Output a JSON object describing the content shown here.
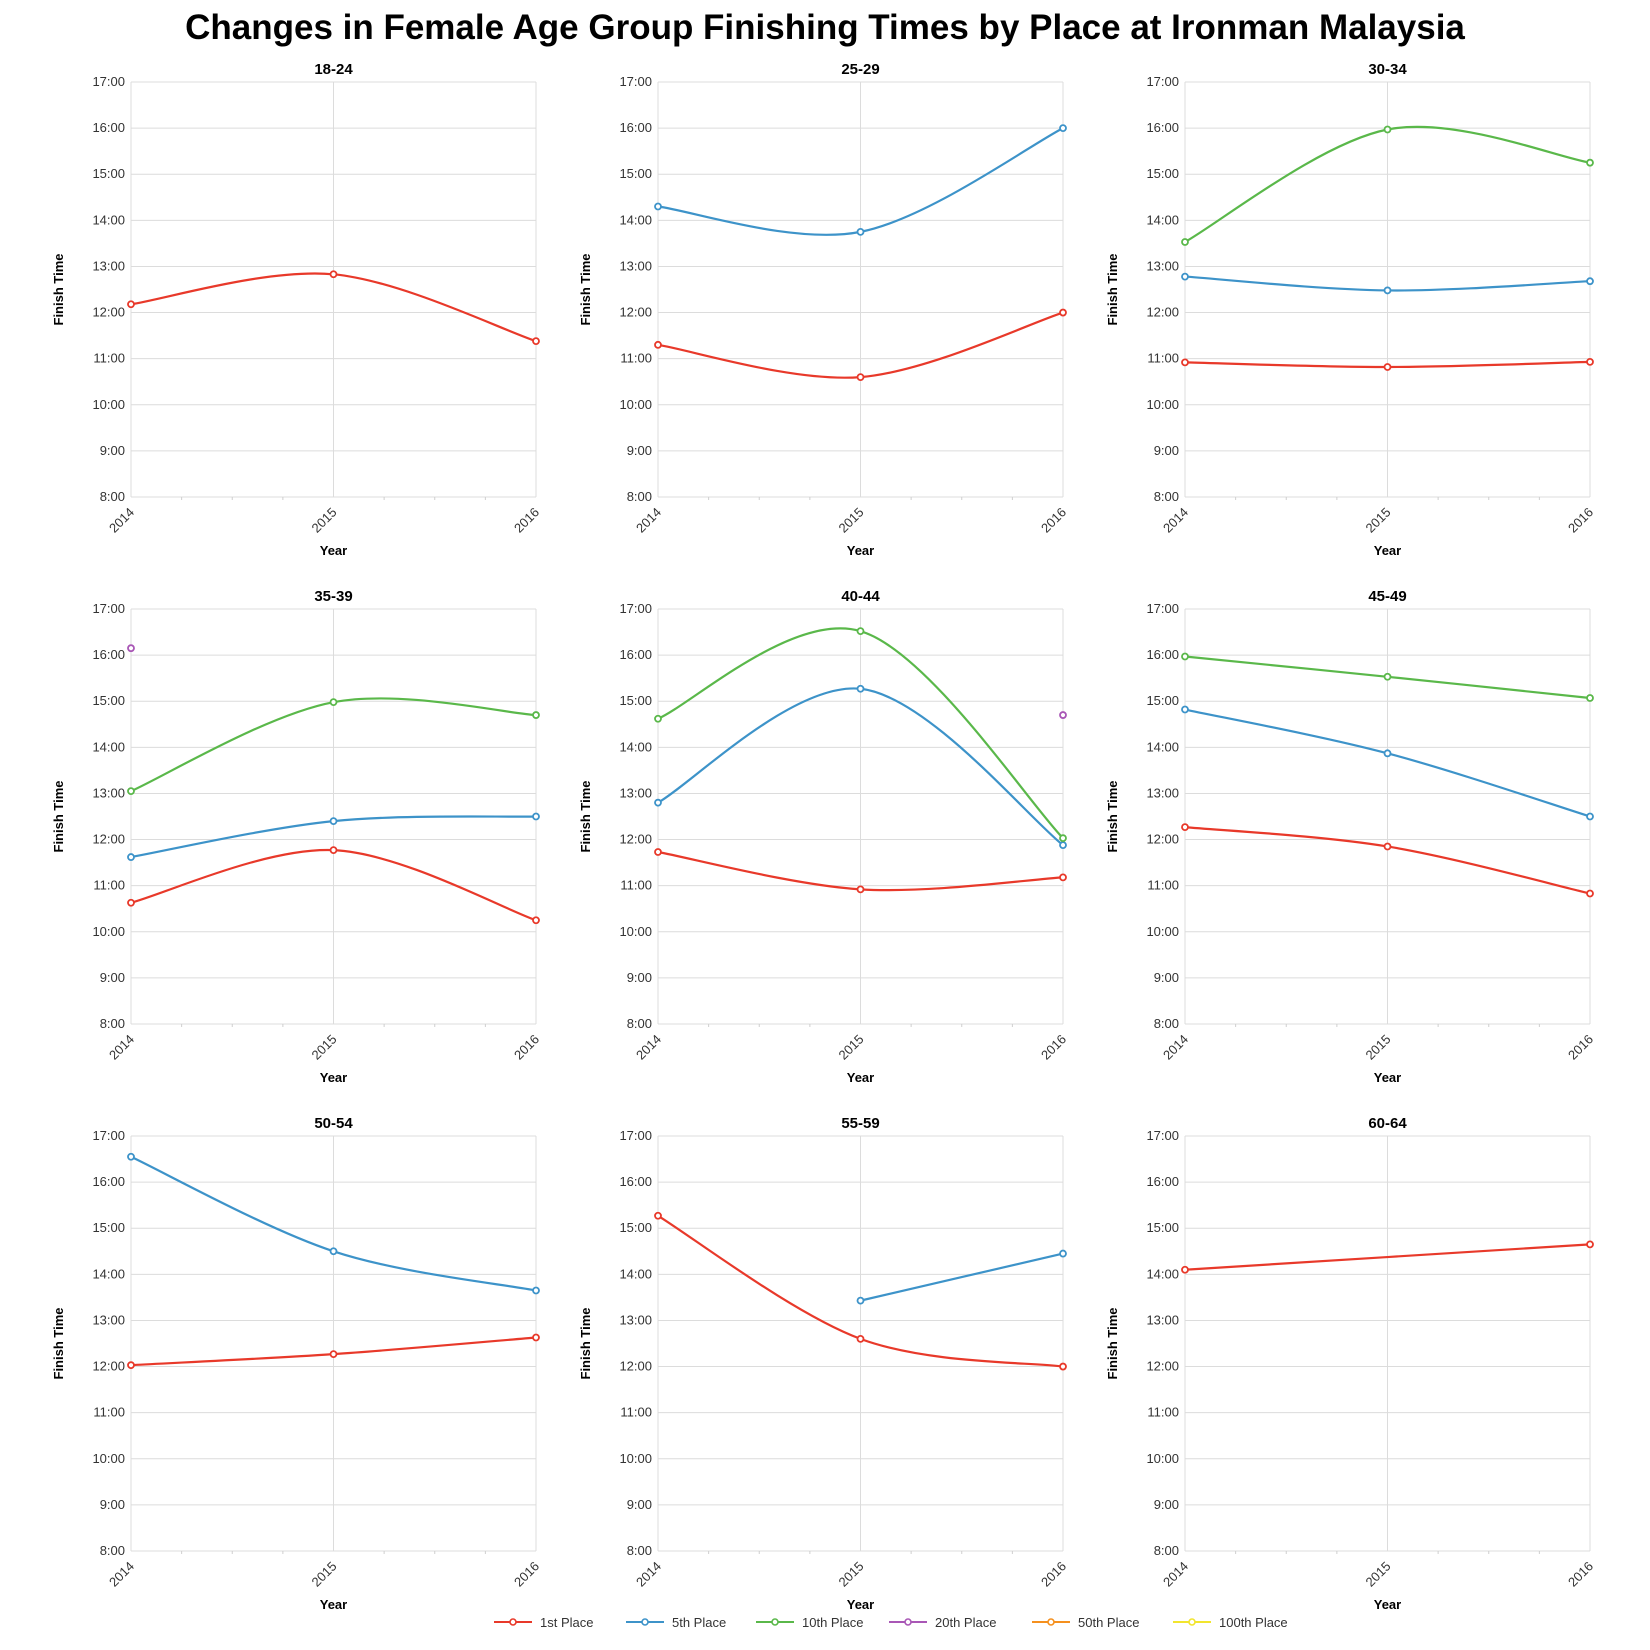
{
  "title": "Changes in Female Age Group Finishing Times by Place at Ironman Malaysia",
  "chart_data": {
    "type": "line",
    "x_ticks": [
      2014,
      2015,
      2016
    ],
    "y_ticks": [
      "8:00",
      "9:00",
      "10:00",
      "11:00",
      "12:00",
      "13:00",
      "14:00",
      "15:00",
      "16:00",
      "17:00"
    ],
    "ylim_hours": [
      8,
      17
    ],
    "xlabel": "Year",
    "ylabel": "Finish Time",
    "grid": true,
    "legend_position": "bottom",
    "series_defs": [
      {
        "name": "1st Place",
        "color": "#e8392a"
      },
      {
        "name": "5th Place",
        "color": "#3d93c9"
      },
      {
        "name": "10th Place",
        "color": "#5ab84a"
      },
      {
        "name": "20th Place",
        "color": "#a957b6"
      },
      {
        "name": "50th Place",
        "color": "#f5901e"
      },
      {
        "name": "100th Place",
        "color": "#f2e52e"
      }
    ],
    "panels": [
      {
        "title": "18-24",
        "series": [
          {
            "name": "1st Place",
            "values": [
              12.18,
              12.83,
              11.38
            ]
          }
        ]
      },
      {
        "title": "25-29",
        "series": [
          {
            "name": "1st Place",
            "values": [
              11.3,
              10.6,
              12.0
            ]
          },
          {
            "name": "5th Place",
            "values": [
              14.3,
              13.75,
              16.0
            ]
          }
        ]
      },
      {
        "title": "30-34",
        "series": [
          {
            "name": "1st Place",
            "values": [
              10.92,
              10.82,
              10.93
            ]
          },
          {
            "name": "5th Place",
            "values": [
              12.78,
              12.48,
              12.68
            ]
          },
          {
            "name": "10th Place",
            "values": [
              13.53,
              15.97,
              15.25
            ]
          }
        ]
      },
      {
        "title": "35-39",
        "series": [
          {
            "name": "1st Place",
            "values": [
              10.63,
              11.77,
              10.25
            ]
          },
          {
            "name": "5th Place",
            "values": [
              11.62,
              12.4,
              12.5
            ]
          },
          {
            "name": "10th Place",
            "values": [
              13.05,
              14.98,
              14.7
            ]
          },
          {
            "name": "20th Place",
            "values": [
              16.15,
              null,
              null
            ]
          }
        ]
      },
      {
        "title": "40-44",
        "series": [
          {
            "name": "1st Place",
            "values": [
              11.73,
              10.92,
              11.18
            ]
          },
          {
            "name": "5th Place",
            "values": [
              12.8,
              15.27,
              11.88
            ]
          },
          {
            "name": "10th Place",
            "values": [
              14.62,
              16.52,
              12.03
            ]
          },
          {
            "name": "20th Place",
            "values": [
              null,
              null,
              14.7
            ]
          }
        ]
      },
      {
        "title": "45-49",
        "series": [
          {
            "name": "1st Place",
            "values": [
              12.27,
              11.85,
              10.83
            ]
          },
          {
            "name": "5th Place",
            "values": [
              14.82,
              13.87,
              12.5
            ]
          },
          {
            "name": "10th Place",
            "values": [
              15.97,
              15.53,
              15.07
            ]
          }
        ]
      },
      {
        "title": "50-54",
        "series": [
          {
            "name": "1st Place",
            "values": [
              12.03,
              12.27,
              12.63
            ]
          },
          {
            "name": "5th Place",
            "values": [
              16.55,
              14.5,
              13.65
            ]
          }
        ]
      },
      {
        "title": "55-59",
        "series": [
          {
            "name": "1st Place",
            "values": [
              15.27,
              12.6,
              12.0
            ]
          },
          {
            "name": "5th Place",
            "values": [
              null,
              13.43,
              14.45
            ]
          }
        ]
      },
      {
        "title": "60-64",
        "series": [
          {
            "name": "1st Place",
            "values": [
              14.1,
              null,
              14.65
            ]
          }
        ]
      }
    ]
  }
}
